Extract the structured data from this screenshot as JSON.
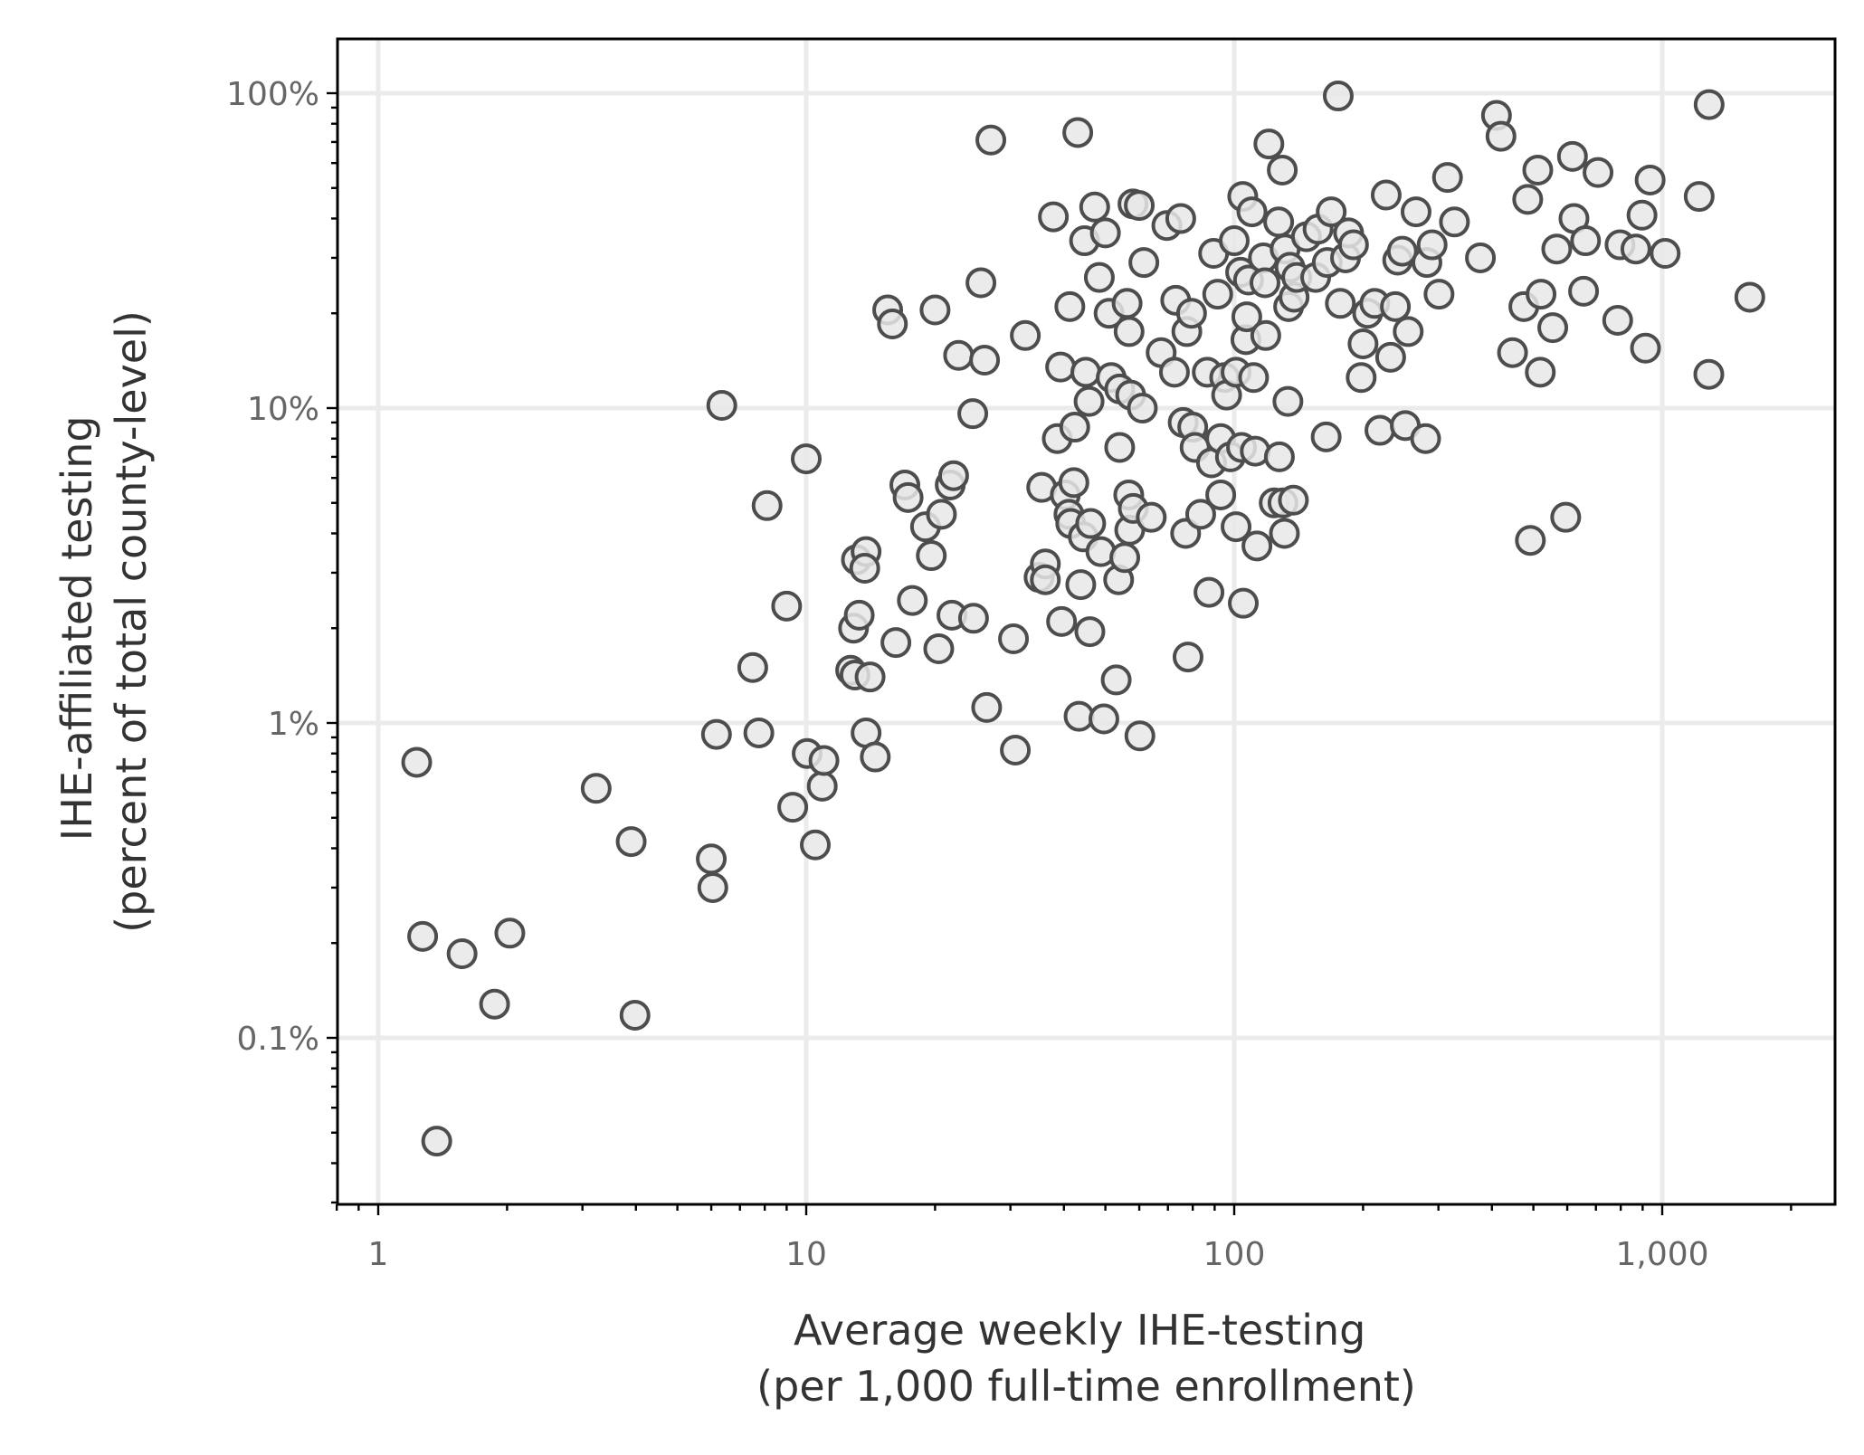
{
  "chart_data": {
    "type": "scatter",
    "xlabel": [
      "Average weekly IHE-testing",
      "(per 1,000 full-time enrollment)"
    ],
    "ylabel": [
      "IHE-affiliated testing",
      "(percent of total county-level)"
    ],
    "x_scale": "log",
    "y_scale": "log",
    "xlim": [
      0.8,
      2500
    ],
    "ylim": [
      0.03,
      150
    ],
    "x_ticks": [
      {
        "value": 1,
        "label": "1"
      },
      {
        "value": 10,
        "label": "10"
      },
      {
        "value": 100,
        "label": "100"
      },
      {
        "value": 1000,
        "label": "1,000"
      }
    ],
    "y_ticks": [
      {
        "value": 100,
        "label": "100%"
      },
      {
        "value": 10,
        "label": "10%"
      },
      {
        "value": 1,
        "label": "1%"
      },
      {
        "value": 0.1,
        "label": "0.1%"
      }
    ],
    "grid": true,
    "colors": {
      "marker_fill": "#e8e8e8",
      "marker_edge": "#4d4d4d",
      "grid": "#ebebeb"
    },
    "points": [
      [
        1.23,
        0.75
      ],
      [
        1.27,
        0.21
      ],
      [
        1.37,
        0.047
      ],
      [
        1.57,
        0.185
      ],
      [
        1.87,
        0.128
      ],
      [
        2.03,
        0.215
      ],
      [
        3.23,
        0.62
      ],
      [
        3.9,
        0.42
      ],
      [
        3.98,
        0.118
      ],
      [
        6.0,
        0.37
      ],
      [
        6.05,
        0.3
      ],
      [
        6.17,
        0.92
      ],
      [
        6.35,
        10.2
      ],
      [
        7.5,
        1.5
      ],
      [
        7.75,
        0.93
      ],
      [
        8.1,
        4.9
      ],
      [
        9.0,
        2.35
      ],
      [
        9.3,
        0.54
      ],
      [
        10.0,
        6.9
      ],
      [
        10.05,
        0.8
      ],
      [
        10.5,
        0.41
      ],
      [
        10.9,
        0.63
      ],
      [
        11.0,
        0.76
      ],
      [
        12.7,
        1.47
      ],
      [
        12.9,
        2.0
      ],
      [
        13.0,
        1.42
      ],
      [
        13.1,
        3.3
      ],
      [
        13.3,
        2.2
      ],
      [
        13.8,
        3.5
      ],
      [
        13.7,
        3.1
      ],
      [
        13.8,
        0.93
      ],
      [
        14.1,
        1.4
      ],
      [
        14.5,
        0.78
      ],
      [
        15.5,
        20.5
      ],
      [
        15.9,
        18.5
      ],
      [
        16.2,
        1.8
      ],
      [
        17.0,
        5.7
      ],
      [
        17.3,
        5.2
      ],
      [
        17.7,
        2.45
      ],
      [
        19.0,
        4.2
      ],
      [
        19.6,
        3.4
      ],
      [
        20.0,
        20.5
      ],
      [
        20.4,
        1.72
      ],
      [
        20.7,
        4.6
      ],
      [
        21.7,
        5.7
      ],
      [
        22.1,
        6.1
      ],
      [
        21.9,
        2.2
      ],
      [
        22.7,
        14.7
      ],
      [
        24.5,
        9.6
      ],
      [
        24.6,
        2.15
      ],
      [
        25.6,
        25.0
      ],
      [
        26.1,
        14.2
      ],
      [
        26.4,
        1.12
      ],
      [
        27.0,
        71.0
      ],
      [
        30.5,
        1.85
      ],
      [
        30.8,
        0.82
      ],
      [
        32.5,
        17.0
      ],
      [
        35.0,
        2.9
      ],
      [
        35.5,
        5.6
      ],
      [
        36.2,
        3.2
      ],
      [
        36.2,
        2.85
      ],
      [
        37.8,
        40.5
      ],
      [
        38.6,
        8.0
      ],
      [
        39.3,
        13.5
      ],
      [
        39.5,
        2.1
      ],
      [
        40.3,
        5.3
      ],
      [
        41.1,
        4.6
      ],
      [
        41.3,
        21.0
      ],
      [
        41.5,
        4.3
      ],
      [
        42.2,
        5.8
      ],
      [
        42.4,
        8.7
      ],
      [
        43.1,
        75.0
      ],
      [
        43.4,
        1.05
      ],
      [
        43.8,
        2.75
      ],
      [
        44.4,
        3.9
      ],
      [
        44.7,
        34.0
      ],
      [
        45.0,
        13.0
      ],
      [
        45.8,
        10.5
      ],
      [
        46.0,
        1.95
      ],
      [
        46.2,
        4.3
      ],
      [
        47.2,
        43.5
      ],
      [
        48.4,
        26.0
      ],
      [
        48.8,
        3.5
      ],
      [
        49.6,
        1.03
      ],
      [
        50.0,
        36.0
      ],
      [
        51.0,
        20.0
      ],
      [
        51.6,
        12.5
      ],
      [
        53.0,
        1.37
      ],
      [
        53.7,
        2.85
      ],
      [
        54.0,
        11.5
      ],
      [
        54.0,
        7.5
      ],
      [
        55.5,
        3.35
      ],
      [
        56.2,
        21.5
      ],
      [
        56.7,
        5.3
      ],
      [
        56.8,
        17.5
      ],
      [
        57.3,
        11.0
      ],
      [
        57.0,
        4.1
      ],
      [
        58.0,
        44.5
      ],
      [
        58.1,
        4.8
      ],
      [
        60.0,
        44.0
      ],
      [
        60.2,
        0.91
      ],
      [
        61.0,
        10.0
      ],
      [
        61.5,
        29.0
      ],
      [
        64.0,
        4.5
      ],
      [
        67.5,
        15.0
      ],
      [
        69.6,
        38.0
      ],
      [
        72.5,
        13.0
      ],
      [
        73.0,
        22.0
      ],
      [
        75.0,
        40.0
      ],
      [
        76.0,
        9.0
      ],
      [
        77.0,
        4.0
      ],
      [
        77.5,
        17.5
      ],
      [
        78.0,
        1.62
      ],
      [
        79.5,
        20.0
      ],
      [
        80.0,
        8.7
      ],
      [
        81.0,
        7.5
      ],
      [
        83.5,
        4.6
      ],
      [
        86.5,
        13.0
      ],
      [
        87.3,
        2.6
      ],
      [
        88.5,
        6.7
      ],
      [
        89.5,
        31.0
      ],
      [
        91.5,
        23.0
      ],
      [
        93.0,
        8.0
      ],
      [
        93.0,
        5.3
      ],
      [
        95.0,
        12.5
      ],
      [
        96.0,
        11.0
      ],
      [
        98.0,
        7.0
      ],
      [
        100.0,
        34.0
      ],
      [
        101.0,
        4.2
      ],
      [
        101.0,
        13.0
      ],
      [
        103.5,
        27.0
      ],
      [
        104.0,
        7.5
      ],
      [
        104.7,
        47.0
      ],
      [
        105.0,
        2.4
      ],
      [
        106.5,
        16.5
      ],
      [
        107.0,
        19.5
      ],
      [
        108.0,
        25.5
      ],
      [
        110.0,
        42.0
      ],
      [
        111.0,
        12.5
      ],
      [
        112.0,
        7.3
      ],
      [
        113.0,
        3.65
      ],
      [
        117.0,
        30.0
      ],
      [
        118.0,
        25.0
      ],
      [
        118.5,
        17.0
      ],
      [
        120.5,
        69.0
      ],
      [
        124.0,
        5.0
      ],
      [
        127.0,
        39.0
      ],
      [
        127.5,
        7.0
      ],
      [
        129.5,
        57.0
      ],
      [
        130.0,
        5.0
      ],
      [
        131.0,
        4.0
      ],
      [
        131.5,
        32.0
      ],
      [
        133.5,
        10.5
      ],
      [
        134.0,
        21.0
      ],
      [
        135.0,
        28.0
      ],
      [
        137.5,
        5.1
      ],
      [
        138.0,
        22.5
      ],
      [
        140.0,
        26.0
      ],
      [
        147.5,
        35.0
      ],
      [
        155.0,
        26.0
      ],
      [
        157.0,
        37.0
      ],
      [
        164.0,
        8.1
      ],
      [
        165.0,
        29.0
      ],
      [
        168.5,
        42.0
      ],
      [
        175.0,
        98.0
      ],
      [
        177.0,
        21.5
      ],
      [
        182.0,
        30.0
      ],
      [
        185.0,
        36.0
      ],
      [
        190.0,
        33.0
      ],
      [
        198.0,
        12.5
      ],
      [
        200.0,
        16.0
      ],
      [
        205.0,
        20.0
      ],
      [
        213.0,
        21.5
      ],
      [
        219.0,
        8.5
      ],
      [
        226.5,
        47.5
      ],
      [
        232.0,
        14.5
      ],
      [
        238.0,
        21.0
      ],
      [
        241.0,
        29.5
      ],
      [
        247.0,
        31.5
      ],
      [
        251.0,
        8.8
      ],
      [
        255.0,
        17.5
      ],
      [
        266.0,
        42.0
      ],
      [
        280.0,
        8.0
      ],
      [
        282.0,
        29.0
      ],
      [
        290.0,
        33.0
      ],
      [
        301.0,
        23.0
      ],
      [
        315.0,
        54.0
      ],
      [
        327.0,
        39.0
      ],
      [
        376.0,
        30.0
      ],
      [
        410.0,
        85.0
      ],
      [
        420.0,
        73.0
      ],
      [
        447.0,
        15.0
      ],
      [
        475.0,
        21.0
      ],
      [
        485.0,
        46.0
      ],
      [
        492.0,
        3.8
      ],
      [
        512.0,
        57.0
      ],
      [
        519.0,
        13.0
      ],
      [
        521.0,
        23.0
      ],
      [
        555.0,
        18.0
      ],
      [
        567.0,
        32.0
      ],
      [
        595.0,
        4.5
      ],
      [
        617.0,
        63.0
      ],
      [
        622.0,
        40.0
      ],
      [
        655.0,
        23.5
      ],
      [
        662.0,
        34.0
      ],
      [
        708.0,
        56.0
      ],
      [
        787.0,
        19.0
      ],
      [
        797.0,
        33.0
      ],
      [
        868.0,
        32.0
      ],
      [
        897.0,
        41.0
      ],
      [
        914.0,
        15.5
      ],
      [
        937.0,
        53.0
      ],
      [
        1016.0,
        31.0
      ],
      [
        1220.0,
        47.0
      ],
      [
        1285.0,
        12.8
      ],
      [
        1287.0,
        92.0
      ],
      [
        1602.0,
        22.5
      ]
    ]
  }
}
